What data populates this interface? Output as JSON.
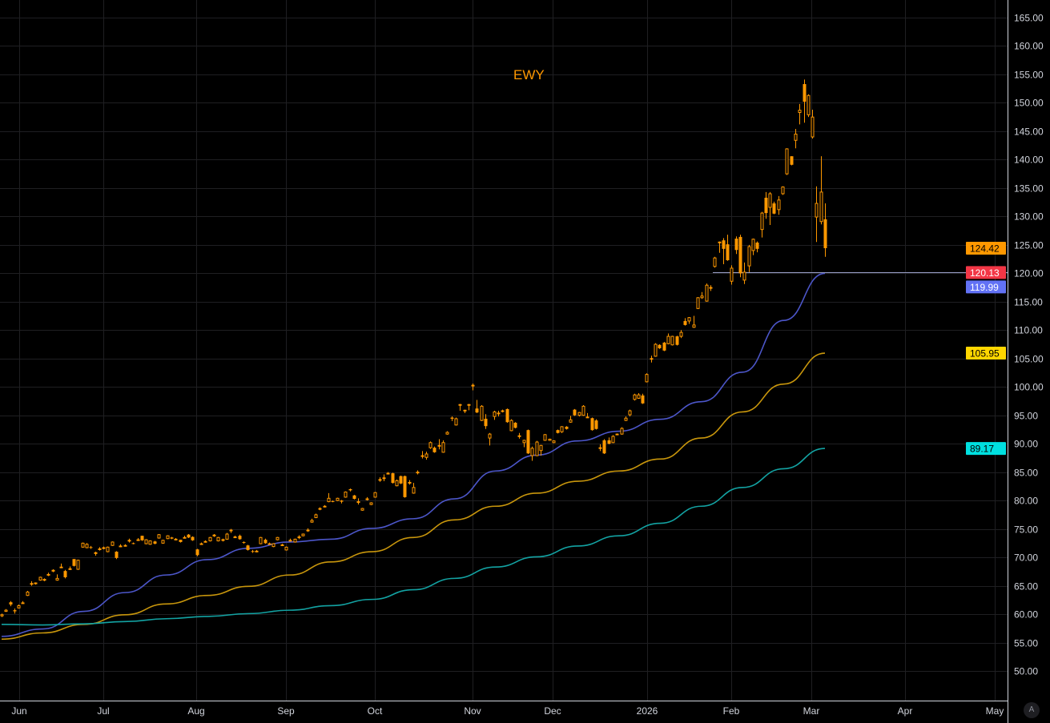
{
  "symbol": "EWY",
  "colors": {
    "background": "#000000",
    "candle": "#ff9800",
    "ma_fast": "#4c56c9",
    "ma_mid": "#c8960c",
    "ma_slow": "#13a3a3",
    "last_price_badge": "#ff9800",
    "hline_badge": "#f23645",
    "ma_fast_badge": "#6272f5",
    "ma_mid_badge": "#ffd600",
    "ma_slow_badge": "#00e0e0"
  },
  "auto_scale_button": "A",
  "chart_data": {
    "type": "candlestick",
    "title": "EWY",
    "y_axis": {
      "min": 50,
      "max": 165,
      "step": 5,
      "position": "right",
      "tick_labels": [
        "165.00",
        "160.00",
        "155.00",
        "150.00",
        "145.00",
        "140.00",
        "135.00",
        "130.00",
        "125.00",
        "120.00",
        "115.00",
        "110.00",
        "105.00",
        "100.00",
        "95.00",
        "90.00",
        "85.00",
        "80.00",
        "75.00",
        "70.00",
        "65.00",
        "60.00",
        "55.00",
        "50.00"
      ]
    },
    "x_axis": {
      "tick_labels": [
        "Jun",
        "Jul",
        "Aug",
        "Sep",
        "Oct",
        "Nov",
        "Dec",
        "2026",
        "Feb",
        "Mar",
        "Apr",
        "May"
      ]
    },
    "grid": true,
    "candle_fields": [
      "open",
      "high",
      "low",
      "close"
    ],
    "candles": [
      [
        59.7,
        60.1,
        59.5,
        59.9
      ],
      [
        60.5,
        60.9,
        60.4,
        60.7
      ],
      [
        62.1,
        62.3,
        61.4,
        61.7
      ],
      [
        60.7,
        61.0,
        60.1,
        60.5
      ],
      [
        61.1,
        61.7,
        61.0,
        61.5
      ],
      [
        61.9,
        62.3,
        61.9,
        62.0
      ],
      [
        63.3,
        64.1,
        63.2,
        63.9
      ],
      [
        65.3,
        65.8,
        65.0,
        65.4
      ],
      [
        65.4,
        65.6,
        65.2,
        65.5
      ],
      [
        66.0,
        66.6,
        65.9,
        66.5
      ],
      [
        66.2,
        66.3,
        65.8,
        65.9
      ],
      [
        67.0,
        67.3,
        66.7,
        67.0
      ],
      [
        67.8,
        67.9,
        67.4,
        67.5
      ],
      [
        66.0,
        67.0,
        65.9,
        66.3
      ],
      [
        68.3,
        68.9,
        68.2,
        68.3
      ],
      [
        67.6,
        67.8,
        66.3,
        66.5
      ],
      [
        68.0,
        68.4,
        67.8,
        68.0
      ],
      [
        69.7,
        69.7,
        68.4,
        68.5
      ],
      [
        67.9,
        69.6,
        67.8,
        69.5
      ],
      [
        71.8,
        72.6,
        71.7,
        72.5
      ],
      [
        71.7,
        72.5,
        71.6,
        72.3
      ],
      [
        71.8,
        72.0,
        71.5,
        71.7
      ],
      [
        70.9,
        71.0,
        70.3,
        70.6
      ],
      [
        71.4,
        71.8,
        71.2,
        71.5
      ],
      [
        71.7,
        71.9,
        71.4,
        71.7
      ],
      [
        71.0,
        71.9,
        70.9,
        71.8
      ],
      [
        72.1,
        72.8,
        72.0,
        72.7
      ],
      [
        71.0,
        71.1,
        69.7,
        69.9
      ],
      [
        71.9,
        72.3,
        71.8,
        72.0
      ],
      [
        72.0,
        72.3,
        71.9,
        72.1
      ],
      [
        73.0,
        73.3,
        72.6,
        73.0
      ],
      [
        72.5,
        72.6,
        72.3,
        72.4
      ],
      [
        73.1,
        73.4,
        72.9,
        73.1
      ],
      [
        73.8,
        73.8,
        72.9,
        73.0
      ],
      [
        72.4,
        73.2,
        72.3,
        73.1
      ],
      [
        72.3,
        73.0,
        72.2,
        72.9
      ],
      [
        72.8,
        72.9,
        72.3,
        72.4
      ],
      [
        73.4,
        74.1,
        73.3,
        74.0
      ],
      [
        72.5,
        73.1,
        72.4,
        73.0
      ],
      [
        73.3,
        73.9,
        73.2,
        73.8
      ],
      [
        73.5,
        73.6,
        73.2,
        73.3
      ],
      [
        73.2,
        73.4,
        73.0,
        73.2
      ],
      [
        73.1,
        73.1,
        72.6,
        72.7
      ],
      [
        73.5,
        73.8,
        73.4,
        73.5
      ],
      [
        74.0,
        74.1,
        73.4,
        73.5
      ],
      [
        73.6,
        73.7,
        72.9,
        73.0
      ],
      [
        71.4,
        71.5,
        70.2,
        70.4
      ],
      [
        72.4,
        72.6,
        72.2,
        72.4
      ],
      [
        72.8,
        73.0,
        72.6,
        72.8
      ],
      [
        72.9,
        73.6,
        72.8,
        73.5
      ],
      [
        74.0,
        74.1,
        73.6,
        73.7
      ],
      [
        72.9,
        73.6,
        72.8,
        73.5
      ],
      [
        73.2,
        73.3,
        72.8,
        72.9
      ],
      [
        73.2,
        74.3,
        73.1,
        74.1
      ],
      [
        74.8,
        75.0,
        74.3,
        74.8
      ],
      [
        73.6,
        73.8,
        73.4,
        73.6
      ],
      [
        73.8,
        74.0,
        73.1,
        73.2
      ],
      [
        72.7,
        72.8,
        72.4,
        72.6
      ],
      [
        72.1,
        72.2,
        71.2,
        71.3
      ],
      [
        71.1,
        71.3,
        70.8,
        71.0
      ],
      [
        71.1,
        71.3,
        70.9,
        71.1
      ],
      [
        72.4,
        73.6,
        72.3,
        73.5
      ],
      [
        73.1,
        73.3,
        72.4,
        72.5
      ],
      [
        72.4,
        72.6,
        72.2,
        72.4
      ],
      [
        71.9,
        72.5,
        71.8,
        72.4
      ],
      [
        73.1,
        73.6,
        73.0,
        73.5
      ],
      [
        72.2,
        72.4,
        72.0,
        72.2
      ],
      [
        71.3,
        71.9,
        71.2,
        71.8
      ],
      [
        73.0,
        73.3,
        72.8,
        73.0
      ],
      [
        72.7,
        73.3,
        72.6,
        73.2
      ],
      [
        73.6,
        73.9,
        73.2,
        73.6
      ],
      [
        73.8,
        74.2,
        73.7,
        74.1
      ],
      [
        74.8,
        75.1,
        74.5,
        74.8
      ],
      [
        76.2,
        76.8,
        76.1,
        76.5
      ],
      [
        77.0,
        77.7,
        76.9,
        77.5
      ],
      [
        78.5,
        78.8,
        78.3,
        78.6
      ],
      [
        78.9,
        79.2,
        78.8,
        79.0
      ],
      [
        79.8,
        81.3,
        79.7,
        80.4
      ],
      [
        79.9,
        80.0,
        79.7,
        79.8
      ],
      [
        80.0,
        80.5,
        79.9,
        80.4
      ],
      [
        80.0,
        80.1,
        79.5,
        79.8
      ],
      [
        80.6,
        81.6,
        80.5,
        81.5
      ],
      [
        82.0,
        82.1,
        81.6,
        81.8
      ],
      [
        80.9,
        81.0,
        80.2,
        80.3
      ],
      [
        79.8,
        80.4,
        79.3,
        79.8
      ],
      [
        78.3,
        78.7,
        78.2,
        78.6
      ],
      [
        80.3,
        80.6,
        80.0,
        80.3
      ],
      [
        79.3,
        79.7,
        79.2,
        79.6
      ],
      [
        80.6,
        81.5,
        80.5,
        81.4
      ],
      [
        83.7,
        84.1,
        83.3,
        83.7
      ],
      [
        84.0,
        84.6,
        83.4,
        84.0
      ],
      [
        84.8,
        85.0,
        84.6,
        84.8
      ],
      [
        84.8,
        84.9,
        83.0,
        83.1
      ],
      [
        82.6,
        83.7,
        82.5,
        83.5
      ],
      [
        84.3,
        84.4,
        82.9,
        83.0
      ],
      [
        84.3,
        84.4,
        80.5,
        80.6
      ],
      [
        83.2,
        83.6,
        82.8,
        83.2
      ],
      [
        81.3,
        83.1,
        81.2,
        82.3
      ],
      [
        85.0,
        85.3,
        84.6,
        85.0
      ],
      [
        87.9,
        88.7,
        87.4,
        87.9
      ],
      [
        87.6,
        88.6,
        87.2,
        88.2
      ],
      [
        89.3,
        90.4,
        89.1,
        90.2
      ],
      [
        89.3,
        89.5,
        88.4,
        88.5
      ],
      [
        89.7,
        90.8,
        89.0,
        89.7
      ],
      [
        88.5,
        90.6,
        88.4,
        90.2
      ],
      [
        91.7,
        92.2,
        91.6,
        92.0
      ],
      [
        94.6,
        94.8,
        94.0,
        94.4
      ],
      [
        93.3,
        94.6,
        93.2,
        94.4
      ],
      [
        96.9,
        97.0,
        95.8,
        96.9
      ],
      [
        95.9,
        96.0,
        95.4,
        95.9
      ],
      [
        96.9,
        97.0,
        95.9,
        96.9
      ],
      [
        100.3,
        100.6,
        99.4,
        100.3
      ],
      [
        96.2,
        97.7,
        95.4,
        95.5
      ],
      [
        94.1,
        96.8,
        94.0,
        96.6
      ],
      [
        94.4,
        95.2,
        92.6,
        93.1
      ],
      [
        91.0,
        91.9,
        89.7,
        91.7
      ],
      [
        94.8,
        95.8,
        94.2,
        95.6
      ],
      [
        95.4,
        95.8,
        94.8,
        95.4
      ],
      [
        95.8,
        96.0,
        95.5,
        95.8
      ],
      [
        96.1,
        96.2,
        93.7,
        93.8
      ],
      [
        92.3,
        94.3,
        92.2,
        94.1
      ],
      [
        93.7,
        93.8,
        92.7,
        92.8
      ],
      [
        91.4,
        91.9,
        90.9,
        91.4
      ],
      [
        90.2,
        90.7,
        89.4,
        90.6
      ],
      [
        92.4,
        92.5,
        88.2,
        88.3
      ],
      [
        87.9,
        89.5,
        87.0,
        89.2
      ],
      [
        87.9,
        90.5,
        87.8,
        90.3
      ],
      [
        88.8,
        89.8,
        87.9,
        89.7
      ],
      [
        90.6,
        91.7,
        90.5,
        91.6
      ],
      [
        90.6,
        90.9,
        90.5,
        90.8
      ],
      [
        90.2,
        90.6,
        90.1,
        90.5
      ],
      [
        92.4,
        92.5,
        91.8,
        91.9
      ],
      [
        92.1,
        93.1,
        91.9,
        93.0
      ],
      [
        93.0,
        93.1,
        92.5,
        92.6
      ],
      [
        93.8,
        94.9,
        93.7,
        94.2
      ],
      [
        96.0,
        96.1,
        94.9,
        95.0
      ],
      [
        95.0,
        95.6,
        94.8,
        95.5
      ],
      [
        95.0,
        96.8,
        94.9,
        96.6
      ],
      [
        94.7,
        95.4,
        94.6,
        94.7
      ],
      [
        94.5,
        94.6,
        92.3,
        92.4
      ],
      [
        94.1,
        94.3,
        92.5,
        92.6
      ],
      [
        89.3,
        89.9,
        88.7,
        89.3
      ],
      [
        90.6,
        90.8,
        88.2,
        88.3
      ],
      [
        90.6,
        91.1,
        89.9,
        90.0
      ],
      [
        90.2,
        91.5,
        90.1,
        91.3
      ],
      [
        91.7,
        91.8,
        91.6,
        91.7
      ],
      [
        91.7,
        92.9,
        91.6,
        92.7
      ],
      [
        94.1,
        94.8,
        94.0,
        94.5
      ],
      [
        95.1,
        96.0,
        94.8,
        95.8
      ],
      [
        97.8,
        98.8,
        97.6,
        98.6
      ],
      [
        98.0,
        98.9,
        97.9,
        98.6
      ],
      [
        98.5,
        98.8,
        97.0,
        97.1
      ],
      [
        100.9,
        102.4,
        100.8,
        102.2
      ],
      [
        105.0,
        105.5,
        104.3,
        105.0
      ],
      [
        105.4,
        107.7,
        105.3,
        107.5
      ],
      [
        107.4,
        107.5,
        106.7,
        106.8
      ],
      [
        107.8,
        107.9,
        106.3,
        106.4
      ],
      [
        107.6,
        109.4,
        107.5,
        108.9
      ],
      [
        107.4,
        109.0,
        107.3,
        108.9
      ],
      [
        108.9,
        109.0,
        107.3,
        107.4
      ],
      [
        108.9,
        110.0,
        108.6,
        109.6
      ],
      [
        111.6,
        112.1,
        110.8,
        110.9
      ],
      [
        111.6,
        112.3,
        111.1,
        112.2
      ],
      [
        110.5,
        112.5,
        110.4,
        110.9
      ],
      [
        113.8,
        115.8,
        113.7,
        115.7
      ],
      [
        115.7,
        116.7,
        115.5,
        116.0
      ],
      [
        115.1,
        118.2,
        115.0,
        117.9
      ],
      [
        117.5,
        117.9,
        116.9,
        117.5
      ],
      [
        121.2,
        122.9,
        121.0,
        122.7
      ],
      [
        125.5,
        125.6,
        123.6,
        125.5
      ],
      [
        125.8,
        126.2,
        121.6,
        124.3
      ],
      [
        125.1,
        126.8,
        122.2,
        122.3
      ],
      [
        118.6,
        121.4,
        118.0,
        120.9
      ],
      [
        126.1,
        126.5,
        123.4,
        124.1
      ],
      [
        126.4,
        126.8,
        119.3,
        120.0
      ],
      [
        118.8,
        121.9,
        118.1,
        120.2
      ],
      [
        121.3,
        125.0,
        120.2,
        124.7
      ],
      [
        124.0,
        126.1,
        123.2,
        126.0
      ],
      [
        125.4,
        125.6,
        123.7,
        124.3
      ],
      [
        127.7,
        130.8,
        126.3,
        130.6
      ],
      [
        133.3,
        134.3,
        129.6,
        130.6
      ],
      [
        131.6,
        134.3,
        128.5,
        134.0
      ],
      [
        132.3,
        132.6,
        130.4,
        130.5
      ],
      [
        131.2,
        133.6,
        130.3,
        132.9
      ],
      [
        134.0,
        135.3,
        133.8,
        135.2
      ],
      [
        137.5,
        142.0,
        137.3,
        141.9
      ],
      [
        140.6,
        140.6,
        139.0,
        139.1
      ],
      [
        143.4,
        145.4,
        142.0,
        144.5
      ],
      [
        148.3,
        149.8,
        146.2,
        148.7
      ],
      [
        153.3,
        154.1,
        146.5,
        150.2
      ],
      [
        147.9,
        151.5,
        147.5,
        151.3
      ],
      [
        144.0,
        148.8,
        143.7,
        147.5
      ],
      [
        129.9,
        135.3,
        125.5,
        132.3
      ],
      [
        129.1,
        140.6,
        128.6,
        134.3
      ],
      [
        129.5,
        132.3,
        122.9,
        124.42
      ]
    ],
    "moving_averages": [
      {
        "key": "ma_fast",
        "last": 119.99,
        "last_label": "119.99",
        "values": [
          56.1,
          57.4,
          60.5,
          63.8,
          66.9,
          69.6,
          71.6,
          72.7,
          73.2,
          75.1,
          76.8,
          80.3,
          85.2,
          88.0,
          90.5,
          92.2,
          94.3,
          97.4,
          102.6,
          111.7,
          119.99
        ]
      },
      {
        "key": "ma_mid",
        "last": 105.95,
        "last_label": "105.95",
        "values": [
          55.6,
          56.7,
          58.2,
          59.9,
          61.8,
          63.3,
          64.9,
          66.9,
          69.2,
          71.0,
          73.5,
          76.6,
          79.0,
          81.3,
          83.4,
          85.2,
          87.3,
          91.0,
          95.6,
          100.5,
          105.95
        ]
      },
      {
        "key": "ma_slow",
        "last": 89.17,
        "last_label": "89.17",
        "values": [
          58.2,
          58.1,
          58.3,
          58.7,
          59.2,
          59.6,
          60.1,
          60.7,
          61.5,
          62.6,
          64.3,
          66.3,
          68.3,
          70.1,
          72.0,
          73.8,
          76.0,
          79.0,
          82.3,
          85.6,
          89.17
        ]
      }
    ],
    "last_price": 124.42,
    "last_price_label": "124.42",
    "horizontal_line": {
      "value": 120.13,
      "label": "120.13"
    }
  }
}
